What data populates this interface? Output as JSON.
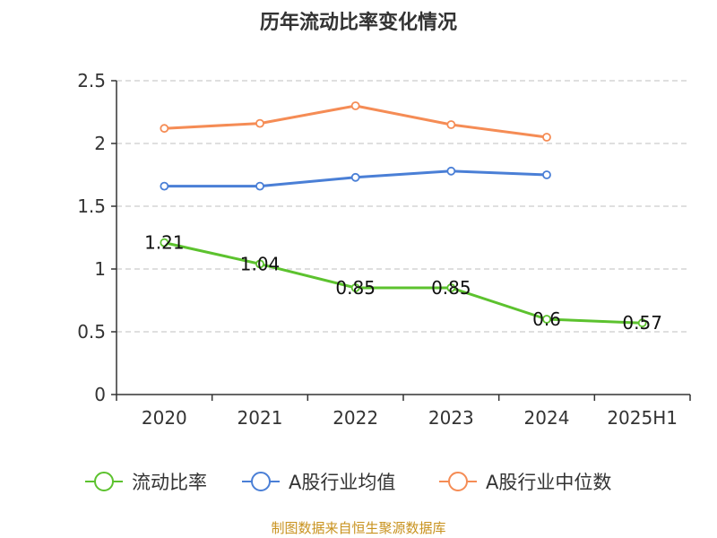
{
  "chart_data": {
    "type": "line",
    "title": "历年流动比率变化情况",
    "categories": [
      "2020",
      "2021",
      "2022",
      "2023",
      "2024",
      "2025H1"
    ],
    "y_ticks": [
      "0",
      "0.5",
      "1",
      "1.5",
      "2",
      "2.5"
    ],
    "ylim": [
      0,
      2.5
    ],
    "grid": true,
    "legend_position": "bottom",
    "series": [
      {
        "name": "流动比率",
        "color": "#5cc22e",
        "values": [
          1.21,
          1.04,
          0.85,
          0.85,
          0.6,
          0.57
        ],
        "labels": [
          "1.21",
          "1.04",
          "0.85",
          "0.85",
          "0.6",
          "0.57"
        ]
      },
      {
        "name": "A股行业均值",
        "color": "#4a7fd6",
        "values": [
          1.66,
          1.66,
          1.73,
          1.78,
          1.75,
          null
        ]
      },
      {
        "name": "A股行业中位数",
        "color": "#f58c55",
        "values": [
          2.12,
          2.16,
          2.3,
          2.15,
          2.05,
          null
        ]
      }
    ]
  },
  "source": "制图数据来自恒生聚源数据库"
}
